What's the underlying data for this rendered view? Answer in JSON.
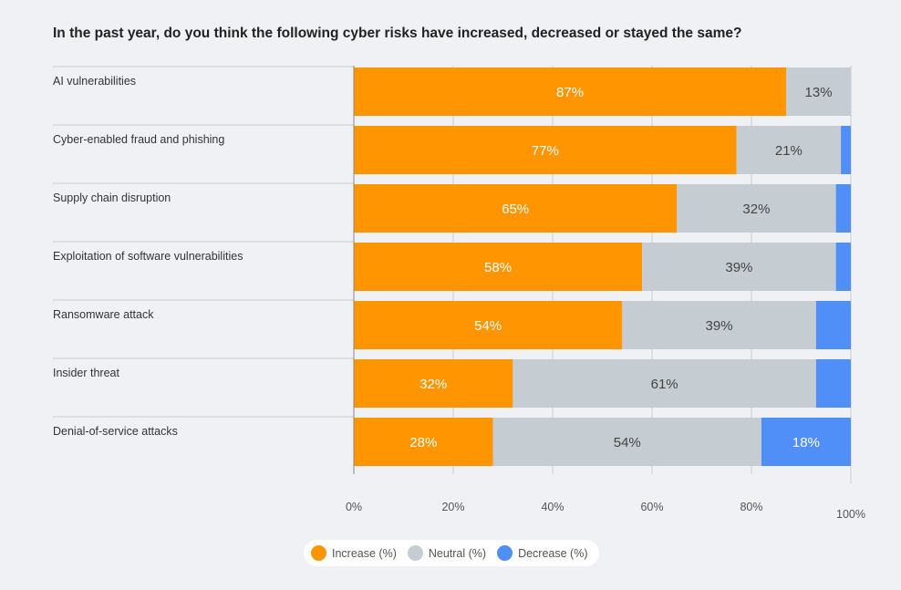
{
  "chart_data": {
    "type": "bar",
    "orientation": "horizontal",
    "stacked": true,
    "title": "In the past year, do you think the following cyber risks have increased, decreased or stayed the same?",
    "categories": [
      "AI vulnerabilities",
      "Cyber-enabled fraud and phishing",
      "Supply chain disruption",
      "Exploitation of software vulnerabilities",
      "Ransomware attack",
      "Insider threat",
      "Denial-of-service attacks"
    ],
    "series": [
      {
        "name": "Increase (%)",
        "color": "#ff9500",
        "values": [
          87,
          77,
          65,
          58,
          54,
          32,
          28
        ],
        "labels": [
          "87%",
          "77%",
          "65%",
          "58%",
          "54%",
          "32%",
          "28%"
        ]
      },
      {
        "name": "Neutral (%)",
        "color": "#c5cdd2",
        "values": [
          13,
          21,
          32,
          39,
          39,
          61,
          54
        ],
        "labels": [
          "13%",
          "21%",
          "32%",
          "39%",
          "39%",
          "61%",
          "54%"
        ]
      },
      {
        "name": "Decrease (%)",
        "color": "#4f8ff7",
        "values": [
          1,
          2,
          3,
          3,
          7,
          7,
          18
        ],
        "labels": [
          "",
          "",
          "",
          "",
          "",
          "",
          "18%"
        ]
      }
    ],
    "xlim": [
      0,
      100
    ],
    "xticks": [
      "0%",
      "20%",
      "40%",
      "60%",
      "80%",
      "100%"
    ],
    "grid": true,
    "legend_position": "bottom"
  }
}
